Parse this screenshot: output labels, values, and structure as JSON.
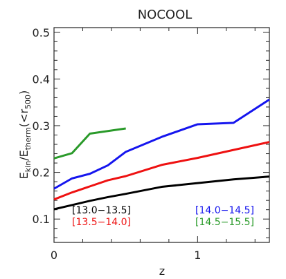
{
  "chart_data": {
    "type": "line",
    "title": "NOCOOL",
    "xlabel": "z",
    "ylabel": {
      "main": "E",
      "sub1": "kin",
      "slash": "/E",
      "sub2": "therm",
      "paren": "(<r",
      "sub3": "500",
      "close": ")"
    },
    "xlim": [
      0,
      1.5
    ],
    "ylim": [
      0.05,
      0.51
    ],
    "xticks": [
      0,
      1
    ],
    "xtick_labels": [
      "0",
      "1"
    ],
    "yticks": [
      0.1,
      0.2,
      0.3,
      0.4,
      0.5
    ],
    "ytick_labels": [
      "0.1",
      "0.2",
      "0.3",
      "0.4",
      "0.5"
    ],
    "grid": false,
    "series": [
      {
        "name": "[13.0−13.5]",
        "color": "#000000",
        "x": [
          0,
          0.125,
          0.25,
          0.375,
          0.5,
          0.75,
          1.0,
          1.25,
          1.5
        ],
        "y": [
          0.121,
          0.13,
          0.139,
          0.147,
          0.154,
          0.169,
          0.177,
          0.185,
          0.191
        ]
      },
      {
        "name": "[13.5−14.0]",
        "color": "#ee1111",
        "x": [
          0,
          0.125,
          0.25,
          0.375,
          0.5,
          0.75,
          1.0,
          1.25,
          1.5
        ],
        "y": [
          0.142,
          0.157,
          0.17,
          0.183,
          0.192,
          0.216,
          0.231,
          0.248,
          0.265
        ]
      },
      {
        "name": "[14.0−14.5]",
        "color": "#1515ee",
        "x": [
          0,
          0.125,
          0.25,
          0.375,
          0.5,
          0.75,
          1.0,
          1.25,
          1.5
        ],
        "y": [
          0.165,
          0.187,
          0.197,
          0.215,
          0.244,
          0.276,
          0.303,
          0.306,
          0.356
        ]
      },
      {
        "name": "[14.5−15.5]",
        "color": "#2a9a2a",
        "x": [
          0,
          0.125,
          0.25,
          0.5
        ],
        "y": [
          0.23,
          0.241,
          0.283,
          0.294
        ]
      }
    ],
    "legend_left_order": [
      0,
      1
    ],
    "legend_right_order": [
      2,
      3
    ]
  }
}
